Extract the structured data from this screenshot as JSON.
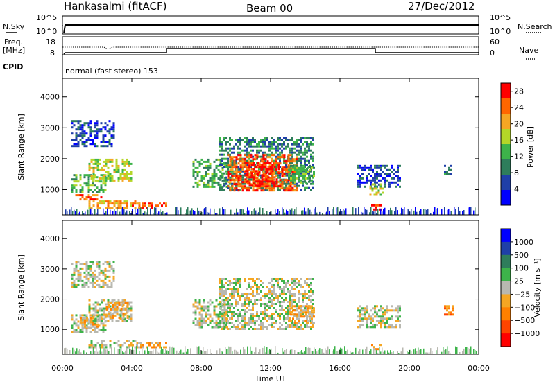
{
  "header": {
    "station": "Hankasalmi (fitACF)",
    "beam": "Beam 00",
    "date": "27/Dec/2012"
  },
  "summary": {
    "nsky_label": "N.Sky",
    "nsearch_label": "N.Search",
    "freq_label_line1": "Freq.",
    "freq_label_line2": "[MHz]",
    "nave_label": "Nave",
    "cpid_label": "CPID",
    "cpid_text": "normal (fast stereo) 153",
    "noise_ticks": [
      "10^5",
      "10^0"
    ],
    "freq_ticks": [
      "18",
      "8"
    ],
    "nave_ticks": [
      "60",
      "0"
    ]
  },
  "colors": {
    "power": [
      "#0000ff",
      "#1f3fa8",
      "#2e7d5b",
      "#3db34a",
      "#b4d628",
      "#f5a623",
      "#ff6600",
      "#ff0000"
    ],
    "velocity": [
      "#0000ff",
      "#1f3fa8",
      "#2e7d5b",
      "#3db34a",
      "#b8b8b0",
      "#f5a623",
      "#ff8000",
      "#ff4400",
      "#ff0000"
    ]
  },
  "chart_data": [
    {
      "type": "heatmap",
      "panel": "power",
      "xlabel": "Time UT",
      "ylabel": "Slant Range [km]",
      "xticks": [
        "00:00",
        "04:00",
        "08:00",
        "12:00",
        "16:00",
        "20:00",
        "00:00"
      ],
      "xlim": [
        0,
        24
      ],
      "ylim": [
        180,
        4600
      ],
      "yticks": [
        1000,
        2000,
        3000,
        4000
      ],
      "colorbar_label": "Power [dB]",
      "colorbar_ticks": [
        4,
        8,
        12,
        16,
        20,
        24,
        28
      ],
      "colorbar_range": [
        0,
        30
      ],
      "regions": [
        {
          "t0": 0.5,
          "t1": 3.0,
          "r0": 2400,
          "r1": 3250,
          "level": 1
        },
        {
          "t0": 0.5,
          "t1": 2.5,
          "r0": 900,
          "r1": 1500,
          "level": 3
        },
        {
          "t0": 1.5,
          "t1": 4.0,
          "r0": 1300,
          "r1": 2000,
          "level": 4
        },
        {
          "t0": 0.5,
          "t1": 2.2,
          "r0": 650,
          "r1": 850,
          "level": 6
        },
        {
          "t0": 1.5,
          "t1": 4.5,
          "r0": 400,
          "r1": 650,
          "level": 5
        },
        {
          "t0": 4.0,
          "t1": 6.0,
          "r0": 380,
          "r1": 580,
          "level": 6
        },
        {
          "t0": 7.5,
          "t1": 9.5,
          "r0": 1100,
          "r1": 2000,
          "level": 3
        },
        {
          "t0": 9.0,
          "t1": 14.5,
          "r0": 1000,
          "r1": 2700,
          "level": 2
        },
        {
          "t0": 9.5,
          "t1": 13.5,
          "r0": 1000,
          "r1": 2150,
          "level": 6
        },
        {
          "t0": 10.5,
          "t1": 12.5,
          "r0": 1100,
          "r1": 1900,
          "level": 7
        },
        {
          "t0": 13.0,
          "t1": 14.5,
          "r0": 1200,
          "r1": 1800,
          "level": 3
        },
        {
          "t0": 17.0,
          "t1": 19.5,
          "r0": 1100,
          "r1": 1800,
          "level": 1
        },
        {
          "t0": 17.7,
          "t1": 18.5,
          "r0": 800,
          "r1": 1200,
          "level": 4
        },
        {
          "t0": 17.8,
          "t1": 18.4,
          "r0": 380,
          "r1": 520,
          "level": 7
        },
        {
          "t0": 22.0,
          "t1": 22.5,
          "r0": 1500,
          "r1": 1800,
          "level": 2
        }
      ]
    },
    {
      "type": "heatmap",
      "panel": "velocity",
      "xlabel": "Time UT",
      "ylabel": "Slant Range [km]",
      "xticks": [
        "00:00",
        "04:00",
        "08:00",
        "12:00",
        "16:00",
        "20:00",
        "00:00"
      ],
      "xlim": [
        0,
        24
      ],
      "ylim": [
        180,
        4600
      ],
      "yticks": [
        1000,
        2000,
        3000,
        4000
      ],
      "colorbar_label": "Velocity [m s⁻¹]",
      "colorbar_ticks": [
        "1000",
        "500",
        "100",
        "25",
        "−25",
        "−100",
        "−500",
        "−1000"
      ],
      "regions": [
        {
          "t0": 0.5,
          "t1": 3.0,
          "r0": 2400,
          "r1": 3250,
          "level": 4
        },
        {
          "t0": 0.5,
          "t1": 2.5,
          "r0": 900,
          "r1": 1500,
          "level": 4
        },
        {
          "t0": 1.0,
          "t1": 2.0,
          "r0": 1100,
          "r1": 1400,
          "level": 5
        },
        {
          "t0": 1.5,
          "t1": 4.0,
          "r0": 1300,
          "r1": 2000,
          "level": 4
        },
        {
          "t0": 2.5,
          "t1": 3.8,
          "r0": 1400,
          "r1": 1900,
          "level": 5
        },
        {
          "t0": 1.5,
          "t1": 4.5,
          "r0": 400,
          "r1": 650,
          "level": 4
        },
        {
          "t0": 4.0,
          "t1": 6.0,
          "r0": 380,
          "r1": 580,
          "level": 5
        },
        {
          "t0": 7.5,
          "t1": 9.5,
          "r0": 1100,
          "r1": 2000,
          "level": 4
        },
        {
          "t0": 9.0,
          "t1": 14.5,
          "r0": 1000,
          "r1": 2700,
          "level": 4
        },
        {
          "t0": 13.0,
          "t1": 14.5,
          "r0": 1200,
          "r1": 1800,
          "level": 5
        },
        {
          "t0": 17.0,
          "t1": 19.5,
          "r0": 1100,
          "r1": 1800,
          "level": 4
        },
        {
          "t0": 17.8,
          "t1": 18.4,
          "r0": 380,
          "r1": 520,
          "level": 5
        },
        {
          "t0": 22.0,
          "t1": 22.5,
          "r0": 1500,
          "r1": 1800,
          "level": 6
        }
      ]
    }
  ]
}
